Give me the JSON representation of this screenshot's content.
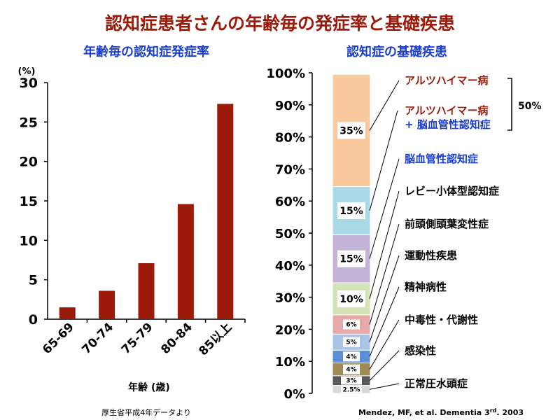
{
  "main_title": "認知症患者さんの年齢毎の発症率と基礎疾患",
  "source_left": "厚生省平成4年データより",
  "source_right_prefix": "Mendez, MF, et al. Dementia 3",
  "source_right_sup": "rd",
  "source_right_suffix": ". 2003",
  "colors": {
    "bar": "#9b1a0a",
    "title_red": "#9b1a0a",
    "blue_title": "#1a3fd0",
    "disease_red": "#9b1a0a",
    "disease_blue": "#1a3fd0"
  },
  "chart_data": [
    {
      "type": "bar",
      "title": "年齢毎の認知症発症率",
      "xlabel": "年齢 (歳)",
      "ylabel": "(%)",
      "categories": [
        "65-69",
        "70-74",
        "75-79",
        "80-84",
        "85以上"
      ],
      "values": [
        1.5,
        3.6,
        7.1,
        14.6,
        27.3
      ],
      "ylim": [
        0,
        30
      ],
      "yticks": [
        "0",
        "5",
        "10",
        "15",
        "20",
        "25",
        "30"
      ],
      "grid": false
    },
    {
      "type": "stacked-bar",
      "title": "認知症の基礎疾患",
      "ylim": [
        0,
        100
      ],
      "yticks": [
        "0%",
        "10%",
        "20%",
        "30%",
        "40%",
        "50%",
        "60%",
        "70%",
        "80%",
        "90%",
        "100%"
      ],
      "segments": [
        {
          "label": "正常圧水頭症",
          "value": 2.5,
          "value_label": "2.5%",
          "color": "#d8d8d8"
        },
        {
          "label": "感染性",
          "value": 3,
          "value_label": "3%",
          "color": "#595959"
        },
        {
          "label": "中毒性・代謝性",
          "value": 4,
          "value_label": "4%",
          "color": "#9e8a55"
        },
        {
          "label": "精神病性",
          "value": 4,
          "value_label": "4%",
          "color": "#5b8fd8"
        },
        {
          "label": "運動性疾患",
          "value": 5,
          "value_label": "5%",
          "color": "#a9c4e6"
        },
        {
          "label": "前頭側頭葉変性症",
          "value": 6,
          "value_label": "6%",
          "color": "#e6a8a8"
        },
        {
          "label": "レビー小体型認知症",
          "value": 10,
          "value_label": "10%",
          "color": "#d4e2b8"
        },
        {
          "label": "脳血管性認知症",
          "value": 15,
          "value_label": "15%",
          "color": "#c4b3d6"
        },
        {
          "label": "アルツハイマー病\n+ 脳血管性認知症",
          "value": 15,
          "value_label": "15%",
          "color": "#a9d9e6"
        },
        {
          "label": "アルツハイマー病",
          "value": 35,
          "value_label": "35%",
          "color": "#f9c89c"
        }
      ],
      "bracket_label": "50%"
    }
  ]
}
